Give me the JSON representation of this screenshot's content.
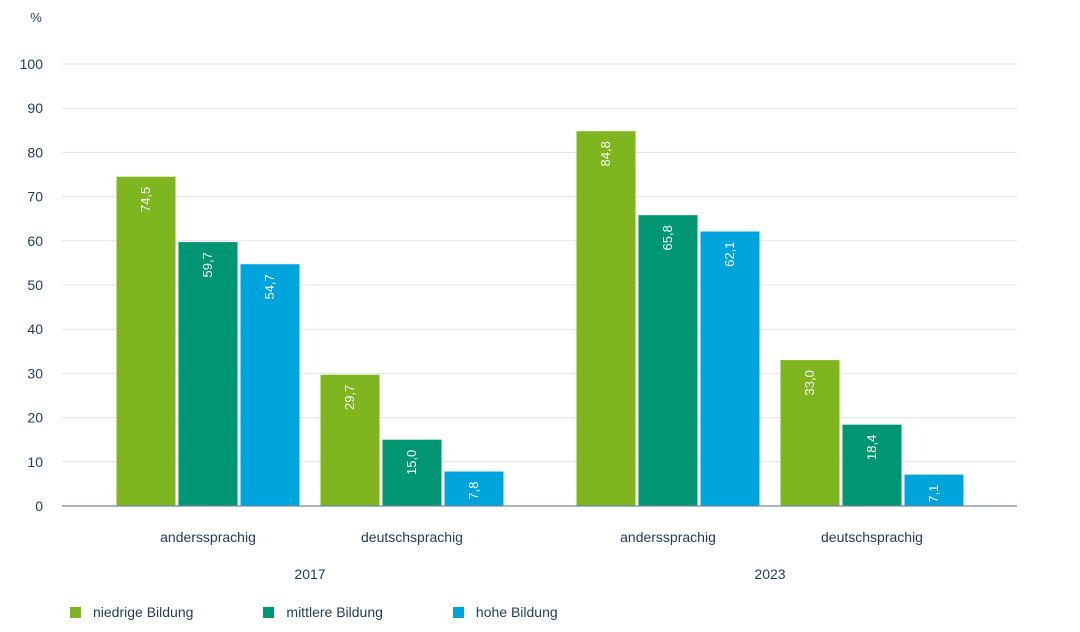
{
  "chart_data": {
    "type": "bar",
    "yunit": "%",
    "ylim": [
      0,
      100
    ],
    "yticks": [
      "0",
      "10",
      "20",
      "30",
      "40",
      "50",
      "60",
      "70",
      "80",
      "90",
      "100"
    ],
    "grid": true,
    "legend_position": "bottom-left",
    "groups": [
      {
        "year": "2017",
        "categories": [
          {
            "label": "anderssprachig",
            "values": [
              74.5,
              59.7,
              54.7
            ],
            "labels": [
              "74,5",
              "59,7",
              "54,7"
            ]
          },
          {
            "label": "deutschsprachig",
            "values": [
              29.7,
              15.0,
              7.8
            ],
            "labels": [
              "29,7",
              "15,0",
              "7,8"
            ]
          }
        ]
      },
      {
        "year": "2023",
        "categories": [
          {
            "label": "anderssprachig",
            "values": [
              84.8,
              65.8,
              62.1
            ],
            "labels": [
              "84,8",
              "65,8",
              "62,1"
            ]
          },
          {
            "label": "deutschsprachig",
            "values": [
              33.0,
              18.4,
              7.1
            ],
            "labels": [
              "33,0",
              "18,4",
              "7,1"
            ]
          }
        ]
      }
    ],
    "series": [
      {
        "name": "niedrige Bildung",
        "color": "#7fb51f"
      },
      {
        "name": "mittlere Bildung",
        "color": "#009673"
      },
      {
        "name": "hohe Bildung",
        "color": "#00a4dc"
      }
    ]
  }
}
